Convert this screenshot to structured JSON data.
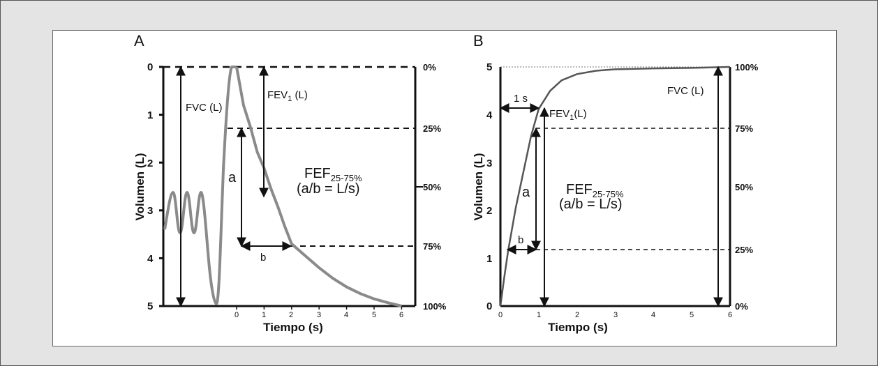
{
  "chart_data": [
    {
      "panel": "A",
      "type": "line",
      "title": "",
      "xlabel": "Tiempo (s)",
      "ylabel": "Volumen (L)",
      "y_inverted": true,
      "ylim": [
        0,
        5
      ],
      "xlim": [
        0,
        6
      ],
      "y_ticks": [
        "0",
        "1",
        "2",
        "3",
        "4",
        "5"
      ],
      "x_ticks": [
        "0",
        "1",
        "2",
        "3",
        "4",
        "5",
        "6"
      ],
      "right_ticks": [
        "0%",
        "25%",
        "50%",
        "75%",
        "100%"
      ],
      "series": [
        {
          "x": [
            0,
            0.25,
            0.5,
            0.75,
            1,
            1.25,
            1.5,
            1.75,
            2,
            2.5,
            3,
            3.5,
            4,
            4.5,
            5,
            5.5,
            6
          ],
          "values": [
            0,
            0.8,
            1.25,
            1.78,
            2.12,
            2.55,
            2.92,
            3.33,
            3.7,
            3.95,
            4.2,
            4.42,
            4.6,
            4.74,
            4.85,
            4.93,
            5.0
          ]
        }
      ],
      "annotations": {
        "fvc": "FVC (L)",
        "fev1_main": "FEV",
        "fev1_sub": "1",
        "fev1_unit": "(L)",
        "fef_main": "FEF",
        "fef_sub": "25-75%",
        "fef_formula": "(a/b = L/s)",
        "a": "a",
        "b": "b"
      }
    },
    {
      "panel": "B",
      "type": "line",
      "title": "",
      "xlabel": "Tiempo (s)",
      "ylabel": "Volumen (L)",
      "ylim": [
        0,
        5
      ],
      "xlim": [
        0,
        6
      ],
      "y_ticks": [
        "0",
        "1",
        "2",
        "3",
        "4",
        "5"
      ],
      "x_ticks": [
        "0",
        "1",
        "2",
        "3",
        "4",
        "5",
        "6"
      ],
      "right_ticks": [
        "100%",
        "75%",
        "50%",
        "25%",
        "0%"
      ],
      "series": [
        {
          "x": [
            0,
            0.1,
            0.2,
            0.4,
            0.6,
            0.8,
            1.0,
            1.3,
            1.6,
            2.0,
            2.5,
            3.0,
            4.0,
            5.0,
            6.0
          ],
          "values": [
            0,
            0.6,
            1.15,
            2.05,
            2.8,
            3.55,
            4.12,
            4.5,
            4.72,
            4.85,
            4.92,
            4.95,
            4.97,
            4.98,
            5.0
          ]
        }
      ],
      "annotations": {
        "one_s": "1 s",
        "fvc": "FVC (L)",
        "fev1_main": "FEV",
        "fev1_sub": "1",
        "fev1_unit": "(L)",
        "fef_main": "FEF",
        "fef_sub": "25-75%",
        "fef_formula": "(a/b = L/s)",
        "a": "a",
        "b": "b"
      }
    }
  ]
}
